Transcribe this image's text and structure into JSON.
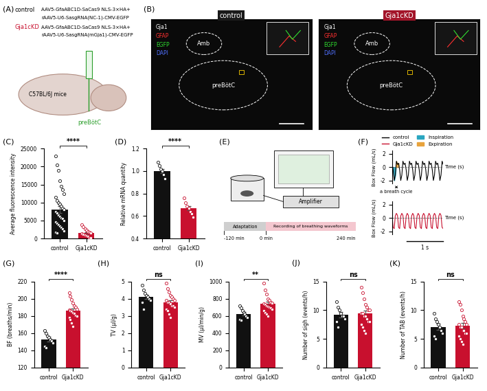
{
  "panel_labels": [
    "(A)",
    "(B)",
    "(C)",
    "(D)",
    "(E)",
    "(F)",
    "(G)",
    "(H)",
    "(I)",
    "(J)",
    "(K)"
  ],
  "panel_A": {
    "groups": [
      {
        "name": "control",
        "color": "#000000",
        "lines": [
          "AAV5-GfaABC1D-SaCas9 NLS-3×HA+",
          "rAAV5-U6-SasgRNA(NC-1)-CMV-EGFP"
        ]
      },
      {
        "name": "Gja1cKD",
        "color": "#c8102e",
        "lines": [
          "AAV5-GfaABC1D-SaCas9 NLS-3×HA+",
          "rAAV5-U6-SasgRNA(mGja1)-CMV-EGFP"
        ]
      }
    ],
    "mouse": "C57BL/6J mice",
    "target": "preBötC"
  },
  "panel_B": {
    "titles": [
      {
        "text": "control",
        "color": "#1a1a1a"
      },
      {
        "text": "Gja1cKD",
        "color": "#a3152a"
      }
    ],
    "channels": [
      {
        "name": "Gja1",
        "color": "#ffffff"
      },
      {
        "name": "GFAP",
        "color": "#ff3030"
      },
      {
        "name": "EGFP",
        "color": "#30e030"
      },
      {
        "name": "DAPI",
        "color": "#5070ff"
      }
    ],
    "regions": [
      "Amb",
      "preBötC"
    ]
  },
  "panel_E": {
    "device": "Amplifier",
    "timeline": [
      "Adaptation",
      "Recording of breathing waveforms"
    ],
    "time_labels": [
      "-120 min",
      "0 min",
      "240 min"
    ]
  },
  "chart_data": [
    {
      "type": "bar",
      "ylabel": "Average fluorescence intensity",
      "categories": [
        "control",
        "Gja1cKD"
      ],
      "values": [
        8000,
        1500
      ],
      "errors": [
        1000,
        300
      ],
      "colors": [
        "#111111",
        "#c8102e"
      ],
      "points": [
        [
          23000,
          20500,
          19000,
          16000,
          14500,
          13500,
          12500,
          11500,
          10500,
          10000,
          9500,
          9000,
          8500,
          8000,
          7500,
          7000,
          6500,
          6200,
          5800,
          5500,
          5000,
          4600,
          4200,
          3800,
          3400,
          3000,
          2600,
          2200,
          1800,
          1500
        ],
        [
          3800,
          3200,
          2700,
          2300,
          2000,
          1700,
          1500,
          1300,
          1100,
          900,
          700,
          500,
          300,
          200
        ]
      ],
      "significance": "****",
      "ylim": [
        0,
        25000
      ],
      "yticks": [
        0,
        5000,
        10000,
        15000,
        20000,
        25000
      ]
    },
    {
      "type": "bar",
      "ylabel": "Relative mRNA quantity",
      "categories": [
        "control",
        "Gja1cKD"
      ],
      "values": [
        1.0,
        0.67
      ],
      "errors": [
        0.02,
        0.02
      ],
      "colors": [
        "#111111",
        "#c8102e"
      ],
      "points": [
        [
          1.08,
          1.05,
          1.02,
          1.0,
          0.97,
          0.93
        ],
        [
          0.76,
          0.72,
          0.69,
          0.67,
          0.64,
          0.62,
          0.59
        ]
      ],
      "significance": "****",
      "ylim": [
        0.4,
        1.2
      ],
      "yticks": [
        0.4,
        0.6,
        0.8,
        1.0,
        1.2
      ]
    },
    {
      "type": "line",
      "ylabel": "Box Flow (mL/s)",
      "xlabel": "Time (s)",
      "legend": "lower center",
      "tick_labels": "y",
      "x": [
        0,
        0.03,
        0.06,
        0.09,
        0.12,
        0.15,
        0.18,
        0.21,
        0.24,
        0.27,
        0.3,
        0.33,
        0.36,
        0.39,
        0.42,
        0.45,
        0.48,
        0.51,
        0.54,
        0.57,
        0.6,
        0.63,
        0.66,
        0.69,
        0.72,
        0.75,
        0.78,
        0.81,
        0.84,
        0.87,
        0.9,
        0.93,
        0.96,
        0.99,
        1.02,
        1.05,
        1.08,
        1.11,
        1.14,
        1.17,
        1.2,
        1.23,
        1.26,
        1.29,
        1.32,
        1.35,
        1.38,
        1.41
      ],
      "series": [
        {
          "name": "control",
          "color": "#000000",
          "values": [
            0.6,
            -0.4,
            -2.0,
            -1.2,
            0.9,
            0.4,
            0.6,
            -0.4,
            -2.0,
            -1.2,
            0.9,
            0.4,
            0.6,
            -0.4,
            -2.0,
            -1.2,
            0.9,
            0.4,
            0.6,
            -0.4,
            -2.0,
            -1.2,
            0.9,
            0.4,
            0.6,
            -0.4,
            -2.0,
            -1.2,
            0.9,
            0.4,
            0.6,
            -0.4,
            -2.0,
            -1.2,
            0.9,
            0.4,
            0.6,
            -0.4,
            -2.0,
            -1.2,
            0.9,
            0.4,
            0.6,
            -0.4,
            -2.0,
            -1.2,
            0.9,
            0.4
          ]
        },
        {
          "name": "Gja1cKD",
          "color": "#c8102e",
          "values": [
            0.4,
            -1.4,
            -1.6,
            0.3,
            0.7,
            0.4,
            -1.4,
            -1.6,
            0.3,
            0.7,
            0.4,
            -1.4,
            -1.6,
            0.3,
            0.7,
            0.4,
            -1.4,
            -1.6,
            0.3,
            0.7,
            0.4,
            -1.4,
            -1.6,
            0.3,
            0.7,
            0.4,
            -1.4,
            -1.6,
            0.3,
            0.7,
            0.4,
            -1.4,
            -1.6,
            0.3,
            0.7,
            0.4,
            -1.4,
            -1.6,
            0.3,
            0.7,
            0.4,
            -1.4,
            -1.6,
            0.3,
            0.7,
            0.4,
            -1.4,
            -1.6
          ]
        }
      ],
      "phases": [
        {
          "name": "Inspiration",
          "color": "#2aa6c0"
        },
        {
          "name": "Expiration",
          "color": "#e8a33c"
        }
      ],
      "annotation": "a breath cycle",
      "scale_bar": {
        "value": 1,
        "label": "1 s"
      },
      "xlim": [
        0,
        1.41
      ],
      "ylim": [
        -2.5,
        2.5
      ],
      "yticks": [
        -2,
        0,
        2
      ]
    },
    {
      "type": "bar",
      "ylabel": "BF (breaths/min)",
      "categories": [
        "control",
        "Gja1cKD"
      ],
      "values": [
        153,
        186
      ],
      "errors": [
        2.5,
        2.5
      ],
      "colors": [
        "#111111",
        "#c8102e"
      ],
      "points": [
        [
          163,
          160,
          157,
          155,
          153,
          151,
          149,
          145,
          143
        ],
        [
          207,
          203,
          199,
          195,
          192,
          190,
          188,
          187,
          186,
          185,
          184,
          183,
          181,
          180,
          178,
          176,
          172,
          168
        ]
      ],
      "significance": "****",
      "ylim": [
        120,
        220
      ],
      "yticks": [
        120,
        140,
        160,
        180,
        200,
        220
      ]
    },
    {
      "type": "bar",
      "ylabel": "TV (μl/g)",
      "categories": [
        "control",
        "Gja1cKD"
      ],
      "values": [
        4.1,
        3.8
      ],
      "errors": [
        0.13,
        0.12
      ],
      "colors": [
        "#111111",
        "#c8102e"
      ],
      "points": [
        [
          4.8,
          4.5,
          4.3,
          4.2,
          4.1,
          4.0,
          3.9,
          3.8,
          3.4
        ],
        [
          4.9,
          4.6,
          4.4,
          4.2,
          4.1,
          4.0,
          3.9,
          3.9,
          3.8,
          3.8,
          3.7,
          3.6,
          3.6,
          3.5,
          3.4,
          3.3,
          3.1,
          2.9
        ]
      ],
      "significance": "ns",
      "ylim": [
        0,
        5
      ],
      "yticks": [
        0,
        1,
        2,
        3,
        4,
        5
      ]
    },
    {
      "type": "bar",
      "ylabel": "MV (μl/min/g)",
      "categories": [
        "control",
        "Gja1cKD"
      ],
      "values": [
        625,
        740
      ],
      "errors": [
        20,
        22
      ],
      "colors": [
        "#111111",
        "#c8102e"
      ],
      "points": [
        [
          720,
          690,
          660,
          640,
          620,
          600,
          580,
          560,
          550
        ],
        [
          980,
          900,
          850,
          800,
          780,
          760,
          750,
          740,
          730,
          720,
          710,
          700,
          690,
          680,
          660,
          640,
          620,
          600
        ]
      ],
      "significance": "**",
      "ylim": [
        0,
        1000
      ],
      "yticks": [
        0,
        200,
        400,
        600,
        800,
        1000
      ]
    },
    {
      "type": "bar",
      "ylabel": "Number of sigh (events/h)",
      "categories": [
        "control",
        "Gja1cKD"
      ],
      "values": [
        9.2,
        9.4
      ],
      "errors": [
        0.45,
        0.5
      ],
      "colors": [
        "#111111",
        "#c8102e"
      ],
      "points": [
        [
          11.5,
          10.5,
          10,
          9.5,
          9,
          9,
          8.5,
          8,
          7
        ],
        [
          14,
          13,
          12,
          11,
          10.5,
          10,
          10,
          9.5,
          9.5,
          9,
          9,
          8.5,
          8,
          8,
          7.5,
          7,
          6.5,
          6
        ]
      ],
      "significance": "ns",
      "ylim": [
        0,
        15
      ],
      "yticks": [
        0,
        5,
        10,
        15
      ]
    },
    {
      "type": "bar",
      "ylabel": "Number of TAB (events/h)",
      "categories": [
        "control",
        "Gja1cKD"
      ],
      "values": [
        7.1,
        7.3
      ],
      "errors": [
        0.5,
        0.45
      ],
      "colors": [
        "#111111",
        "#c8102e"
      ],
      "points": [
        [
          9.5,
          8.5,
          8,
          7.5,
          7,
          6.5,
          6,
          5.5,
          5
        ],
        [
          11.5,
          11,
          10,
          9,
          8.5,
          8,
          7.5,
          7.5,
          7,
          7,
          6.5,
          6.5,
          6,
          6,
          5.5,
          5,
          4.5,
          4
        ]
      ],
      "significance": "ns",
      "ylim": [
        0,
        15
      ],
      "yticks": [
        0,
        5,
        10,
        15
      ]
    }
  ]
}
